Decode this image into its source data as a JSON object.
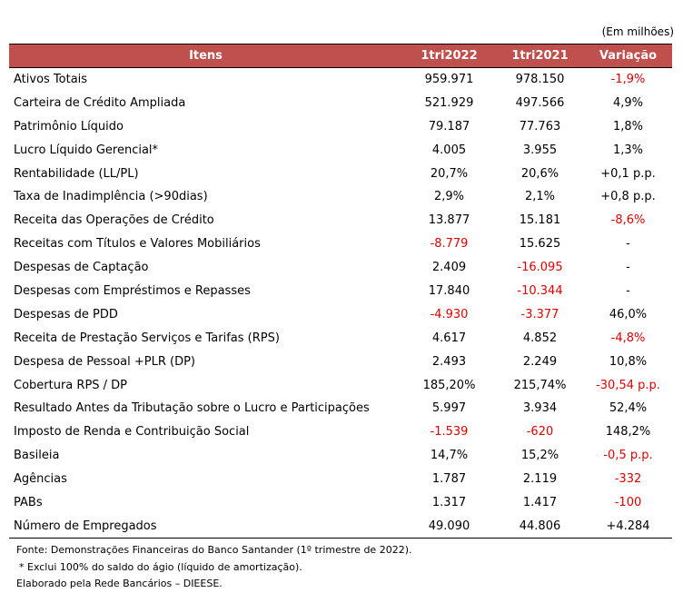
{
  "unit_note": "(Em milhões)",
  "headers": [
    "Itens",
    "1tri2022",
    "1tri2021",
    "Variação"
  ],
  "rows": [
    {
      "item": "Ativos Totais",
      "a": "959.971",
      "b": "978.150",
      "c": "-1,9%"
    },
    {
      "item": "Carteira de Crédito Ampliada",
      "a": "521.929",
      "b": "497.566",
      "c": "4,9%"
    },
    {
      "item": "Patrimônio Líquido",
      "a": "79.187",
      "b": "77.763",
      "c": "1,8%"
    },
    {
      "item": "Lucro Líquido Gerencial*",
      "a": "4.005",
      "b": "3.955",
      "c": "1,3%"
    },
    {
      "item": "Rentabilidade (LL/PL)",
      "a": "20,7%",
      "b": "20,6%",
      "c": "+0,1 p.p."
    },
    {
      "item": "Taxa de Inadimplência (>90dias)",
      "a": "2,9%",
      "b": "2,1%",
      "c": "+0,8 p.p."
    },
    {
      "item": "Receita das Operações de Crédito",
      "a": "13.877",
      "b": "15.181",
      "c": "-8,6%"
    },
    {
      "item": "Receitas com Títulos e Valores Mobiliários",
      "a": "-8.779",
      "b": "15.625",
      "c": "-"
    },
    {
      "item": "Despesas de Captação",
      "a": "2.409",
      "b": "-16.095",
      "c": "-"
    },
    {
      "item": "Despesas com Empréstimos e Repasses",
      "a": "17.840",
      "b": "-10.344",
      "c": "-"
    },
    {
      "item": "Despesas de PDD",
      "a": "-4.930",
      "b": "-3.377",
      "c": "46,0%"
    },
    {
      "item": "Receita de Prestação Serviços e Tarifas (RPS)",
      "a": "4.617",
      "b": "4.852",
      "c": "-4,8%"
    },
    {
      "item": "Despesa de Pessoal +PLR (DP)",
      "a": "2.493",
      "b": "2.249",
      "c": "10,8%"
    },
    {
      "item": "Cobertura RPS / DP",
      "a": "185,20%",
      "b": "215,74%",
      "c": "-30,54 p.p."
    },
    {
      "item": "Resultado Antes da Tributação sobre o Lucro e Participações",
      "a": "5.997",
      "b": "3.934",
      "c": "52,4%"
    },
    {
      "item": "Imposto de Renda e Contribuição Social",
      "a": "-1.539",
      "b": "-620",
      "c": "148,2%"
    },
    {
      "item": "Basileia",
      "a": "14,7%",
      "b": "15,2%",
      "c": "-0,5 p.p."
    },
    {
      "item": "Agências",
      "a": "1.787",
      "b": "2.119",
      "c": "-332"
    },
    {
      "item": "PABs",
      "a": "1.317",
      "b": "1.417",
      "c": "-100"
    },
    {
      "item": "Número de Empregados",
      "a": "49.090",
      "b": "44.806",
      "c": "+4.284"
    }
  ],
  "footnotes": {
    "source": "Fonte: Demonstrações Financeiras do Banco Santander (1º trimestre de 2022).",
    "note": "* Exclui 100% do saldo do ágio (líquido de amortização).",
    "credit": "Elaborado pela Rede Bancários – DIEESE."
  },
  "colors": {
    "header_bg": "#c0504d",
    "negative": "#e00000"
  }
}
